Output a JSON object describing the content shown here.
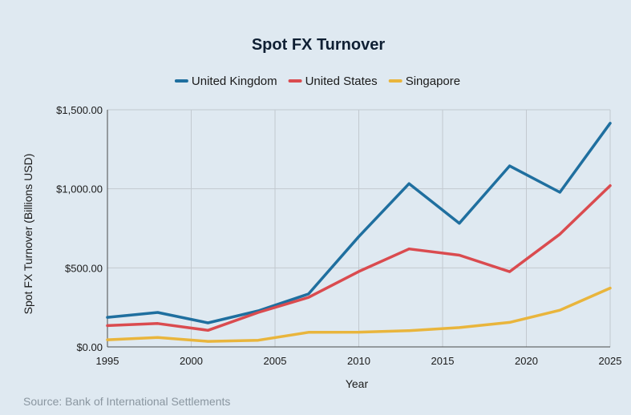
{
  "chart_data": {
    "type": "line",
    "title": "Spot FX Turnover",
    "xlabel": "Year",
    "ylabel": "Spot FX Turnover (Billions USD)",
    "xlim": [
      1995,
      2025
    ],
    "ylim": [
      0,
      1500
    ],
    "x_ticks": [
      1995,
      2000,
      2005,
      2010,
      2015,
      2020,
      2025
    ],
    "x_tick_labels": [
      "1995",
      "2000",
      "2005",
      "2010",
      "2015",
      "2020",
      "2025"
    ],
    "y_ticks": [
      0,
      500,
      1000,
      1500
    ],
    "y_tick_labels": [
      "$0.00",
      "$500.00",
      "$1,000.00",
      "$1,500.00"
    ],
    "grid": true,
    "legend_position": "top-center",
    "x": [
      1995,
      1998,
      2001,
      2004,
      2007,
      2010,
      2013,
      2016,
      2019,
      2022,
      2025
    ],
    "series": [
      {
        "name": "United Kingdom",
        "color": "#1f6f9f",
        "values": [
          187,
          218,
          152,
          228,
          335,
          698,
          1033,
          782,
          1145,
          978,
          1415
        ]
      },
      {
        "name": "United States",
        "color": "#da4b4f",
        "values": [
          135,
          148,
          105,
          218,
          313,
          477,
          620,
          580,
          476,
          713,
          1020
        ]
      },
      {
        "name": "Singapore",
        "color": "#e9b53c",
        "values": [
          45,
          60,
          35,
          42,
          92,
          93,
          103,
          122,
          155,
          232,
          372
        ]
      }
    ]
  },
  "source": "Source: Bank of International Settlements"
}
